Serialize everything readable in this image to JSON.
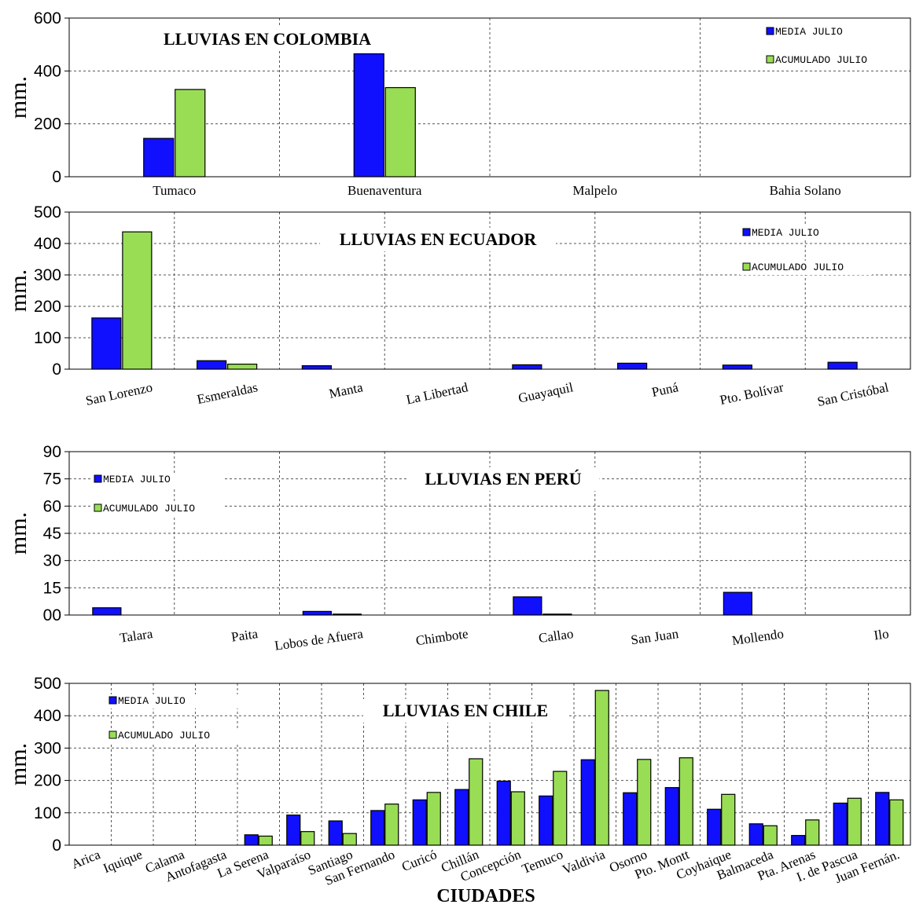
{
  "colors": {
    "media": "#1010ff",
    "acumulado": "#99dd55",
    "grid": "#555555"
  },
  "x_title": "CIUDADES",
  "chart_data": [
    {
      "type": "bar",
      "title": "LLUVIAS EN COLOMBIA",
      "ylabel": "mm.",
      "ylim": [
        0,
        600
      ],
      "yticks": [
        "0",
        "200",
        "400",
        "600"
      ],
      "legend_placement": "top-right",
      "categories": [
        "Tumaco",
        "Buenaventura",
        "Malpelo",
        "Bahia Solano"
      ],
      "series": [
        {
          "name": "MEDIA JULIO",
          "values": [
            145,
            465,
            null,
            null
          ]
        },
        {
          "name": "ACUMULADO JULIO",
          "values": [
            330,
            337,
            null,
            null
          ]
        }
      ]
    },
    {
      "type": "bar",
      "title": "LLUVIAS EN ECUADOR",
      "ylabel": "mm.",
      "ylim": [
        0,
        500
      ],
      "yticks": [
        "0",
        "100",
        "200",
        "300",
        "400",
        "500"
      ],
      "legend_placement": "top-right",
      "categories": [
        "San Lorenzo",
        "Esmeraldas",
        "Manta",
        "La Libertad",
        "Guayaquil",
        "Puná",
        "Pto. Bolívar",
        "San Cristóbal"
      ],
      "series": [
        {
          "name": "MEDIA JULIO",
          "values": [
            163,
            27,
            11,
            null,
            14,
            19,
            13,
            22
          ]
        },
        {
          "name": "ACUMULADO JULIO",
          "values": [
            437,
            16,
            null,
            null,
            null,
            null,
            null,
            null
          ]
        }
      ]
    },
    {
      "type": "bar",
      "title": "LLUVIAS EN PERÚ",
      "ylabel": "mm.",
      "ylim": [
        0,
        90
      ],
      "yticks": [
        "00",
        "15",
        "30",
        "45",
        "60",
        "75",
        "90"
      ],
      "legend_placement": "top-left",
      "categories": [
        "Talara",
        "Paita",
        "Lobos de Afuera",
        "Chimbote",
        "Callao",
        "San Juan",
        "Mollendo",
        "Ilo"
      ],
      "series": [
        {
          "name": "MEDIA JULIO",
          "values": [
            4,
            null,
            2,
            null,
            10,
            null,
            12.5,
            null
          ]
        },
        {
          "name": "ACUMULADO JULIO",
          "values": [
            null,
            null,
            0.5,
            null,
            0.5,
            null,
            null,
            null
          ]
        }
      ]
    },
    {
      "type": "bar",
      "title": "LLUVIAS EN CHILE",
      "ylabel": "mm.",
      "xlabel": "CIUDADES",
      "ylim": [
        0,
        500
      ],
      "yticks": [
        "0",
        "100",
        "200",
        "300",
        "400",
        "500"
      ],
      "legend_placement": "top-left",
      "categories": [
        "Arica",
        "Iquique",
        "Calama",
        "Antofagasta",
        "La Serena",
        "Valparaíso",
        "Santiago",
        "San Fernando",
        "Curicó",
        "Chillán",
        "Concepción",
        "Temuco",
        "Valdivia",
        "Osorno",
        "Pto. Montt",
        "Coyhaique",
        "Balmaceda",
        "Pta. Arenas",
        "I. de Pascua",
        "Juan Fernán."
      ],
      "series": [
        {
          "name": "MEDIA JULIO",
          "values": [
            null,
            null,
            null,
            null,
            32,
            93,
            75,
            107,
            140,
            172,
            198,
            152,
            264,
            162,
            178,
            111,
            66,
            30,
            130,
            163
          ]
        },
        {
          "name": "ACUMULADO JULIO",
          "values": [
            null,
            null,
            null,
            null,
            28,
            42,
            36,
            127,
            163,
            267,
            165,
            228,
            478,
            265,
            270,
            157,
            60,
            78,
            145,
            140
          ]
        }
      ]
    }
  ]
}
